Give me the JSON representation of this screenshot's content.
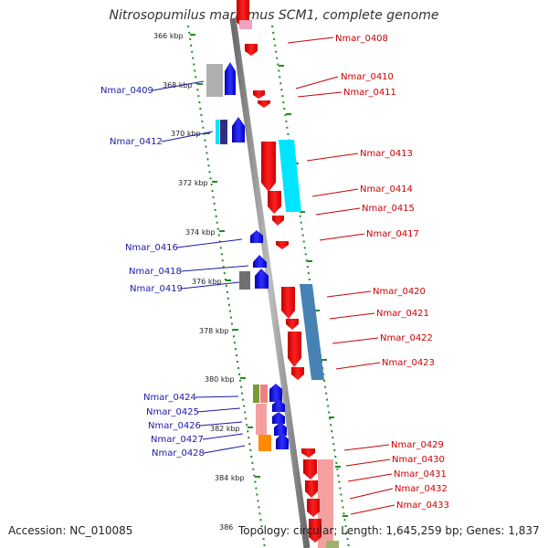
{
  "title": "Nitrosopumilus maritimus SCM1, complete genome",
  "accession": "Accession: NC_010085",
  "summary": "Topology: circular; Length: 1,645,259 bp; Genes: 1,837",
  "colors": {
    "forward_gene": "#ff0000",
    "reverse_gene": "#0000ff",
    "left_label": "#1a1aa6",
    "right_label": "#cc0000",
    "backbone": "#8a8a8a",
    "tick": "#228b22"
  },
  "kbp_ticks": [
    "366 kbp",
    "368 kbp",
    "370 kbp",
    "372 kbp",
    "374 kbp",
    "376 kbp",
    "378 kbp",
    "380 kbp",
    "382 kbp",
    "384 kbp",
    "386"
  ],
  "left_labels": [
    "Nmar_0409",
    "Nmar_0412",
    "Nmar_0416",
    "Nmar_0418",
    "Nmar_0419",
    "Nmar_0424",
    "Nmar_0425",
    "Nmar_0426",
    "Nmar_0427",
    "Nmar_0428"
  ],
  "right_labels": [
    "Nmar_0408",
    "Nmar_0410",
    "Nmar_0411",
    "Nmar_0413",
    "Nmar_0414",
    "Nmar_0415",
    "Nmar_0417",
    "Nmar_0420",
    "Nmar_0421",
    "Nmar_0422",
    "Nmar_0423",
    "Nmar_0429",
    "Nmar_0430",
    "Nmar_0431",
    "Nmar_0432",
    "Nmar_0433"
  ]
}
